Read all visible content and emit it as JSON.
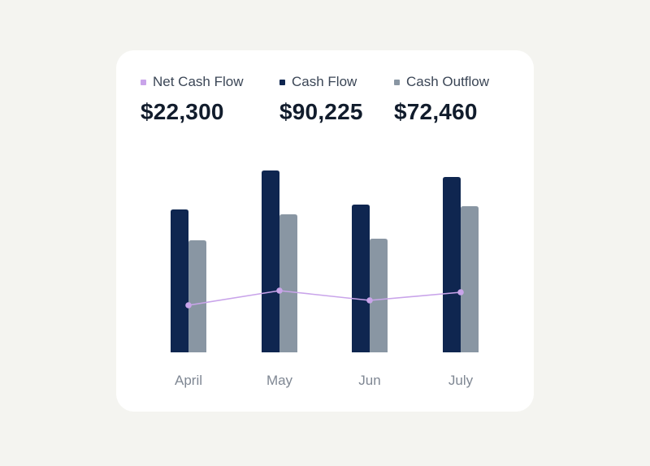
{
  "colors": {
    "net_cash_flow": "#c9a4ea",
    "cash_flow": "#0f2650",
    "cash_outflow": "#8996a3"
  },
  "legend": [
    {
      "label": "Net Cash Flow",
      "value": "$22,300",
      "color": "#c9a4ea"
    },
    {
      "label": "Cash Flow",
      "value": "$90,225",
      "color": "#0f2650"
    },
    {
      "label": "Cash Outflow",
      "value": "$72,460",
      "color": "#8996a3"
    }
  ],
  "chart_data": {
    "type": "bar",
    "categories": [
      "April",
      "May",
      "Jun",
      "July"
    ],
    "series": [
      {
        "name": "Cash Flow",
        "type": "bar",
        "values": [
          88,
          112,
          91,
          108
        ]
      },
      {
        "name": "Cash Outflow",
        "type": "bar",
        "values": [
          69,
          85,
          70,
          90
        ]
      },
      {
        "name": "Net Cash Flow",
        "type": "line",
        "values": [
          29,
          38,
          32,
          37
        ]
      }
    ],
    "ylim": [
      0,
      120
    ],
    "grid": false,
    "legend_position": "top"
  }
}
